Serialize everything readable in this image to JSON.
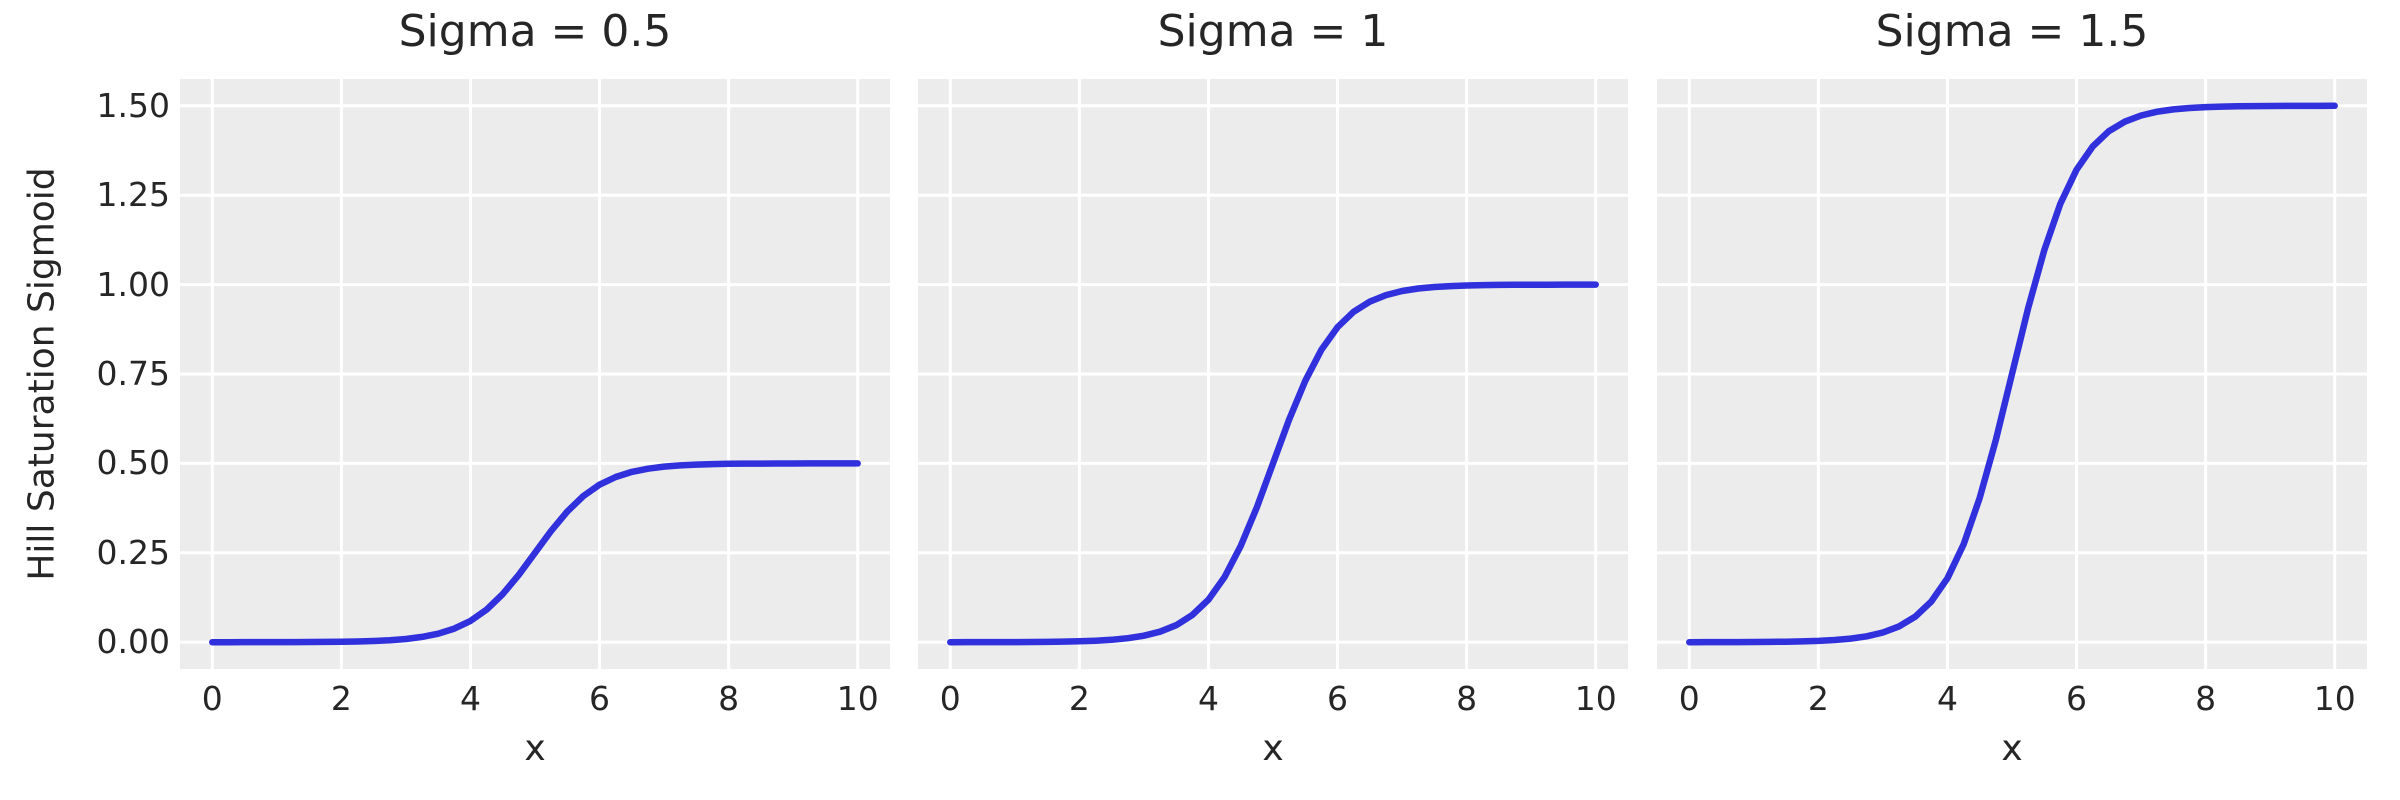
{
  "figure": {
    "background": "#ffffff",
    "axes_background": "#ececec",
    "grid_color": "#ffffff",
    "text_color": "#262626",
    "line_color": "#3030dd"
  },
  "chart_data": {
    "type": "line",
    "layout": "1 row x 3 columns, shared y axis",
    "grid": true,
    "legend": "none",
    "xlabel": "x",
    "ylabel": "Hill Saturation Sigmoid",
    "xlim": [
      -0.5,
      10.5
    ],
    "ylim": [
      -0.075,
      1.575
    ],
    "x_ticks": [
      0,
      2,
      4,
      6,
      8,
      10
    ],
    "x_tick_labels": [
      "0",
      "2",
      "4",
      "6",
      "8",
      "10"
    ],
    "y_ticks": [
      0,
      0.25,
      0.5,
      0.75,
      1,
      1.25,
      1.5
    ],
    "y_tick_labels": [
      "0.00",
      "0.25",
      "0.50",
      "0.75",
      "1.00",
      "1.25",
      "1.50"
    ],
    "x": [
      0,
      0.25,
      0.5,
      0.75,
      1,
      1.25,
      1.5,
      1.75,
      2,
      2.25,
      2.5,
      2.75,
      3,
      3.25,
      3.5,
      3.75,
      4,
      4.25,
      4.5,
      4.75,
      5,
      5.25,
      5.5,
      5.75,
      6,
      6.25,
      6.5,
      6.75,
      7,
      7.25,
      7.5,
      7.75,
      8,
      8.25,
      8.5,
      8.75,
      9,
      9.25,
      9.5,
      9.75,
      10
    ],
    "panels": [
      {
        "title": "Sigma = 0.5",
        "sigma": 0.5,
        "plateau": 0.5,
        "midpoint_x": 5,
        "y": [
          0,
          0,
          0.0001,
          0.0001,
          0.0002,
          0.0003,
          0.0005,
          0.0007,
          0.0012,
          0.002,
          0.0033,
          0.0055,
          0.009,
          0.0147,
          0.0237,
          0.0379,
          0.0596,
          0.0912,
          0.1345,
          0.1888,
          0.25,
          0.3112,
          0.3655,
          0.4088,
          0.4404,
          0.462,
          0.4763,
          0.4853,
          0.491,
          0.4945,
          0.4967,
          0.4979,
          0.4988,
          0.4993,
          0.4995,
          0.4997,
          0.4998,
          0.4999,
          0.5,
          0.5,
          0.5
        ]
      },
      {
        "title": "Sigma = 1",
        "sigma": 1,
        "plateau": 1.0,
        "midpoint_x": 5,
        "y": [
          0,
          0.0001,
          0.0001,
          0.0002,
          0.0003,
          0.0006,
          0.0009,
          0.0015,
          0.0025,
          0.0041,
          0.0067,
          0.011,
          0.018,
          0.0293,
          0.0474,
          0.0759,
          0.1192,
          0.1824,
          0.2689,
          0.3775,
          0.5,
          0.6225,
          0.7311,
          0.8176,
          0.8808,
          0.9241,
          0.9526,
          0.9707,
          0.982,
          0.989,
          0.9933,
          0.9959,
          0.9975,
          0.9985,
          0.9991,
          0.9994,
          0.9997,
          0.9998,
          0.9999,
          0.9999,
          1
        ]
      },
      {
        "title": "Sigma = 1.5",
        "sigma": 1.5,
        "plateau": 1.5,
        "midpoint_x": 5,
        "y": [
          0,
          0.0001,
          0.0002,
          0.0003,
          0.0005,
          0.0008,
          0.0014,
          0.0022,
          0.0037,
          0.0062,
          0.01,
          0.0165,
          0.027,
          0.044,
          0.0712,
          0.1138,
          0.1788,
          0.2735,
          0.4034,
          0.5663,
          0.75,
          0.9337,
          1.0966,
          1.2265,
          1.3212,
          1.3862,
          1.4289,
          1.456,
          1.473,
          1.4835,
          1.49,
          1.4939,
          1.4963,
          1.4978,
          1.4987,
          1.4991,
          1.4996,
          1.4997,
          1.4999,
          1.4999,
          1.5
        ]
      }
    ]
  }
}
